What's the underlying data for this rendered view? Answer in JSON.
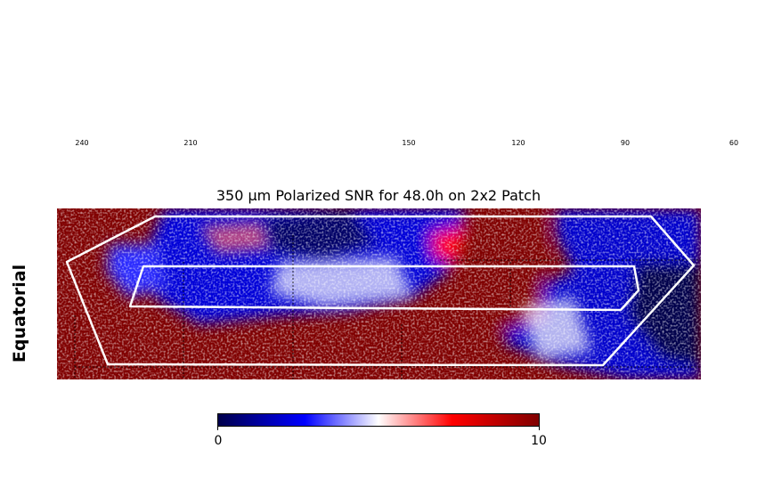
{
  "chart_data": {
    "type": "heatmap",
    "title": "350 μm Polarized SNR for 48.0h on 2x2 Patch",
    "row_label": "Equatorial",
    "x_ticks": [
      "240",
      "210",
      "150",
      "120",
      "90",
      "60"
    ],
    "colorbar": {
      "min": 0,
      "max": 10,
      "ticks": [
        "0",
        "10"
      ],
      "colors": [
        "#00004c",
        "#0000ff",
        "#ffffff",
        "#ff0000",
        "#800000"
      ]
    },
    "overlay_color": "#ffffff"
  }
}
